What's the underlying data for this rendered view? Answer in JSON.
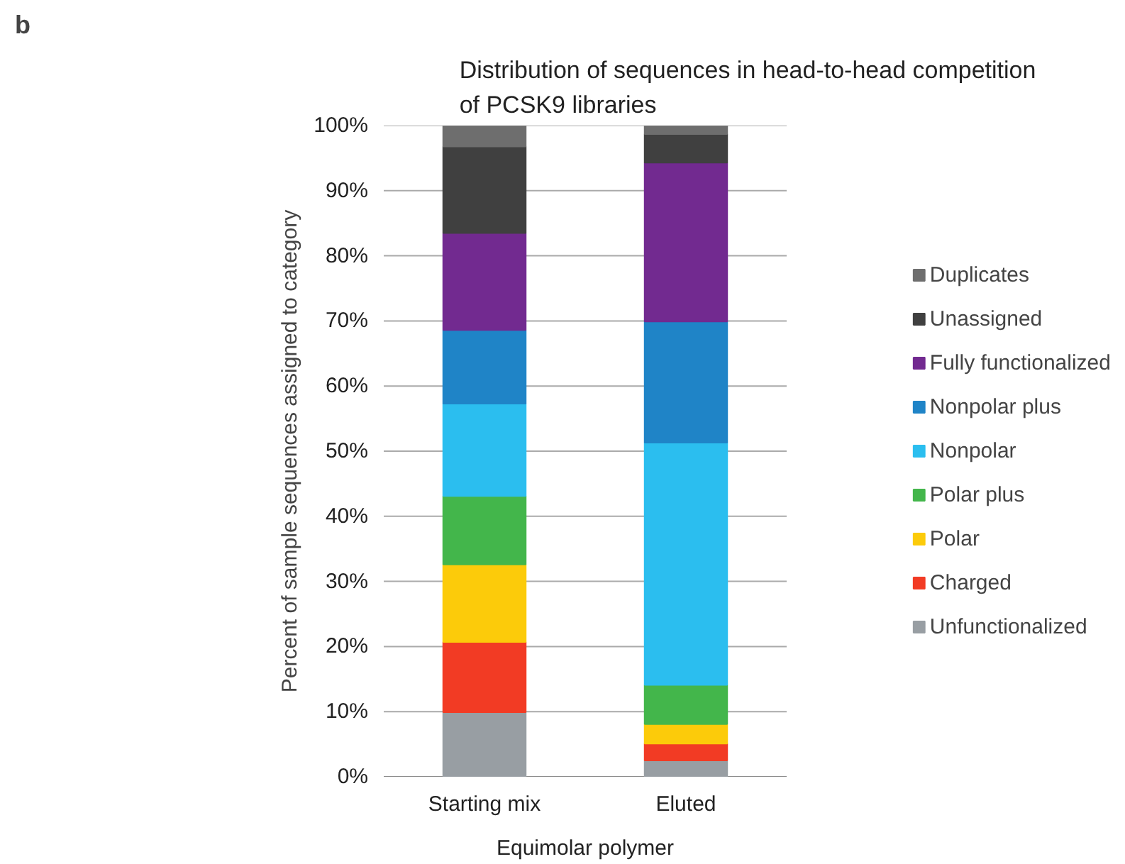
{
  "chart_data": {
    "type": "bar",
    "stacked": true,
    "title": "Distribution of sequences in head-to-head competition\nof PCSK9 libraries",
    "ylabel": "Percent of sample sequences assigned to category",
    "xlabel": "Equimolar polymer",
    "annotations": [
      "b"
    ],
    "categories": [
      "Starting mix",
      "Eluted"
    ],
    "series": [
      {
        "name": "Unfunctionalized",
        "color": "#989ea3",
        "values": [
          9.9,
          2.5
        ]
      },
      {
        "name": "Charged",
        "color": "#f23b24",
        "values": [
          10.8,
          2.6
        ]
      },
      {
        "name": "Polar",
        "color": "#fccb0a",
        "values": [
          11.9,
          3.0
        ]
      },
      {
        "name": "Polar plus",
        "color": "#43b64b",
        "values": [
          10.5,
          6.0
        ]
      },
      {
        "name": "Nonpolar",
        "color": "#2bbeef",
        "values": [
          14.2,
          37.2
        ]
      },
      {
        "name": "Nonpolar plus",
        "color": "#1f84c7",
        "values": [
          11.3,
          18.6
        ]
      },
      {
        "name": "Fully functionalized",
        "color": "#722a90",
        "values": [
          14.9,
          24.4
        ]
      },
      {
        "name": "Unassigned",
        "color": "#404040",
        "values": [
          13.3,
          4.4
        ]
      },
      {
        "name": "Duplicates",
        "color": "#6e6e6e",
        "values": [
          3.2,
          1.3
        ]
      }
    ],
    "ylim": [
      0,
      100
    ],
    "yticks": [
      {
        "value": 0,
        "label": "0%"
      },
      {
        "value": 10,
        "label": "10%"
      },
      {
        "value": 20,
        "label": "20%"
      },
      {
        "value": 30,
        "label": "30%"
      },
      {
        "value": 40,
        "label": "40%"
      },
      {
        "value": 50,
        "label": "50%"
      },
      {
        "value": 60,
        "label": "60%"
      },
      {
        "value": 70,
        "label": "70%"
      },
      {
        "value": 80,
        "label": "80%"
      },
      {
        "value": 90,
        "label": "90%"
      },
      {
        "value": 100,
        "label": "100%"
      }
    ],
    "grid": "y",
    "legend": "right"
  }
}
